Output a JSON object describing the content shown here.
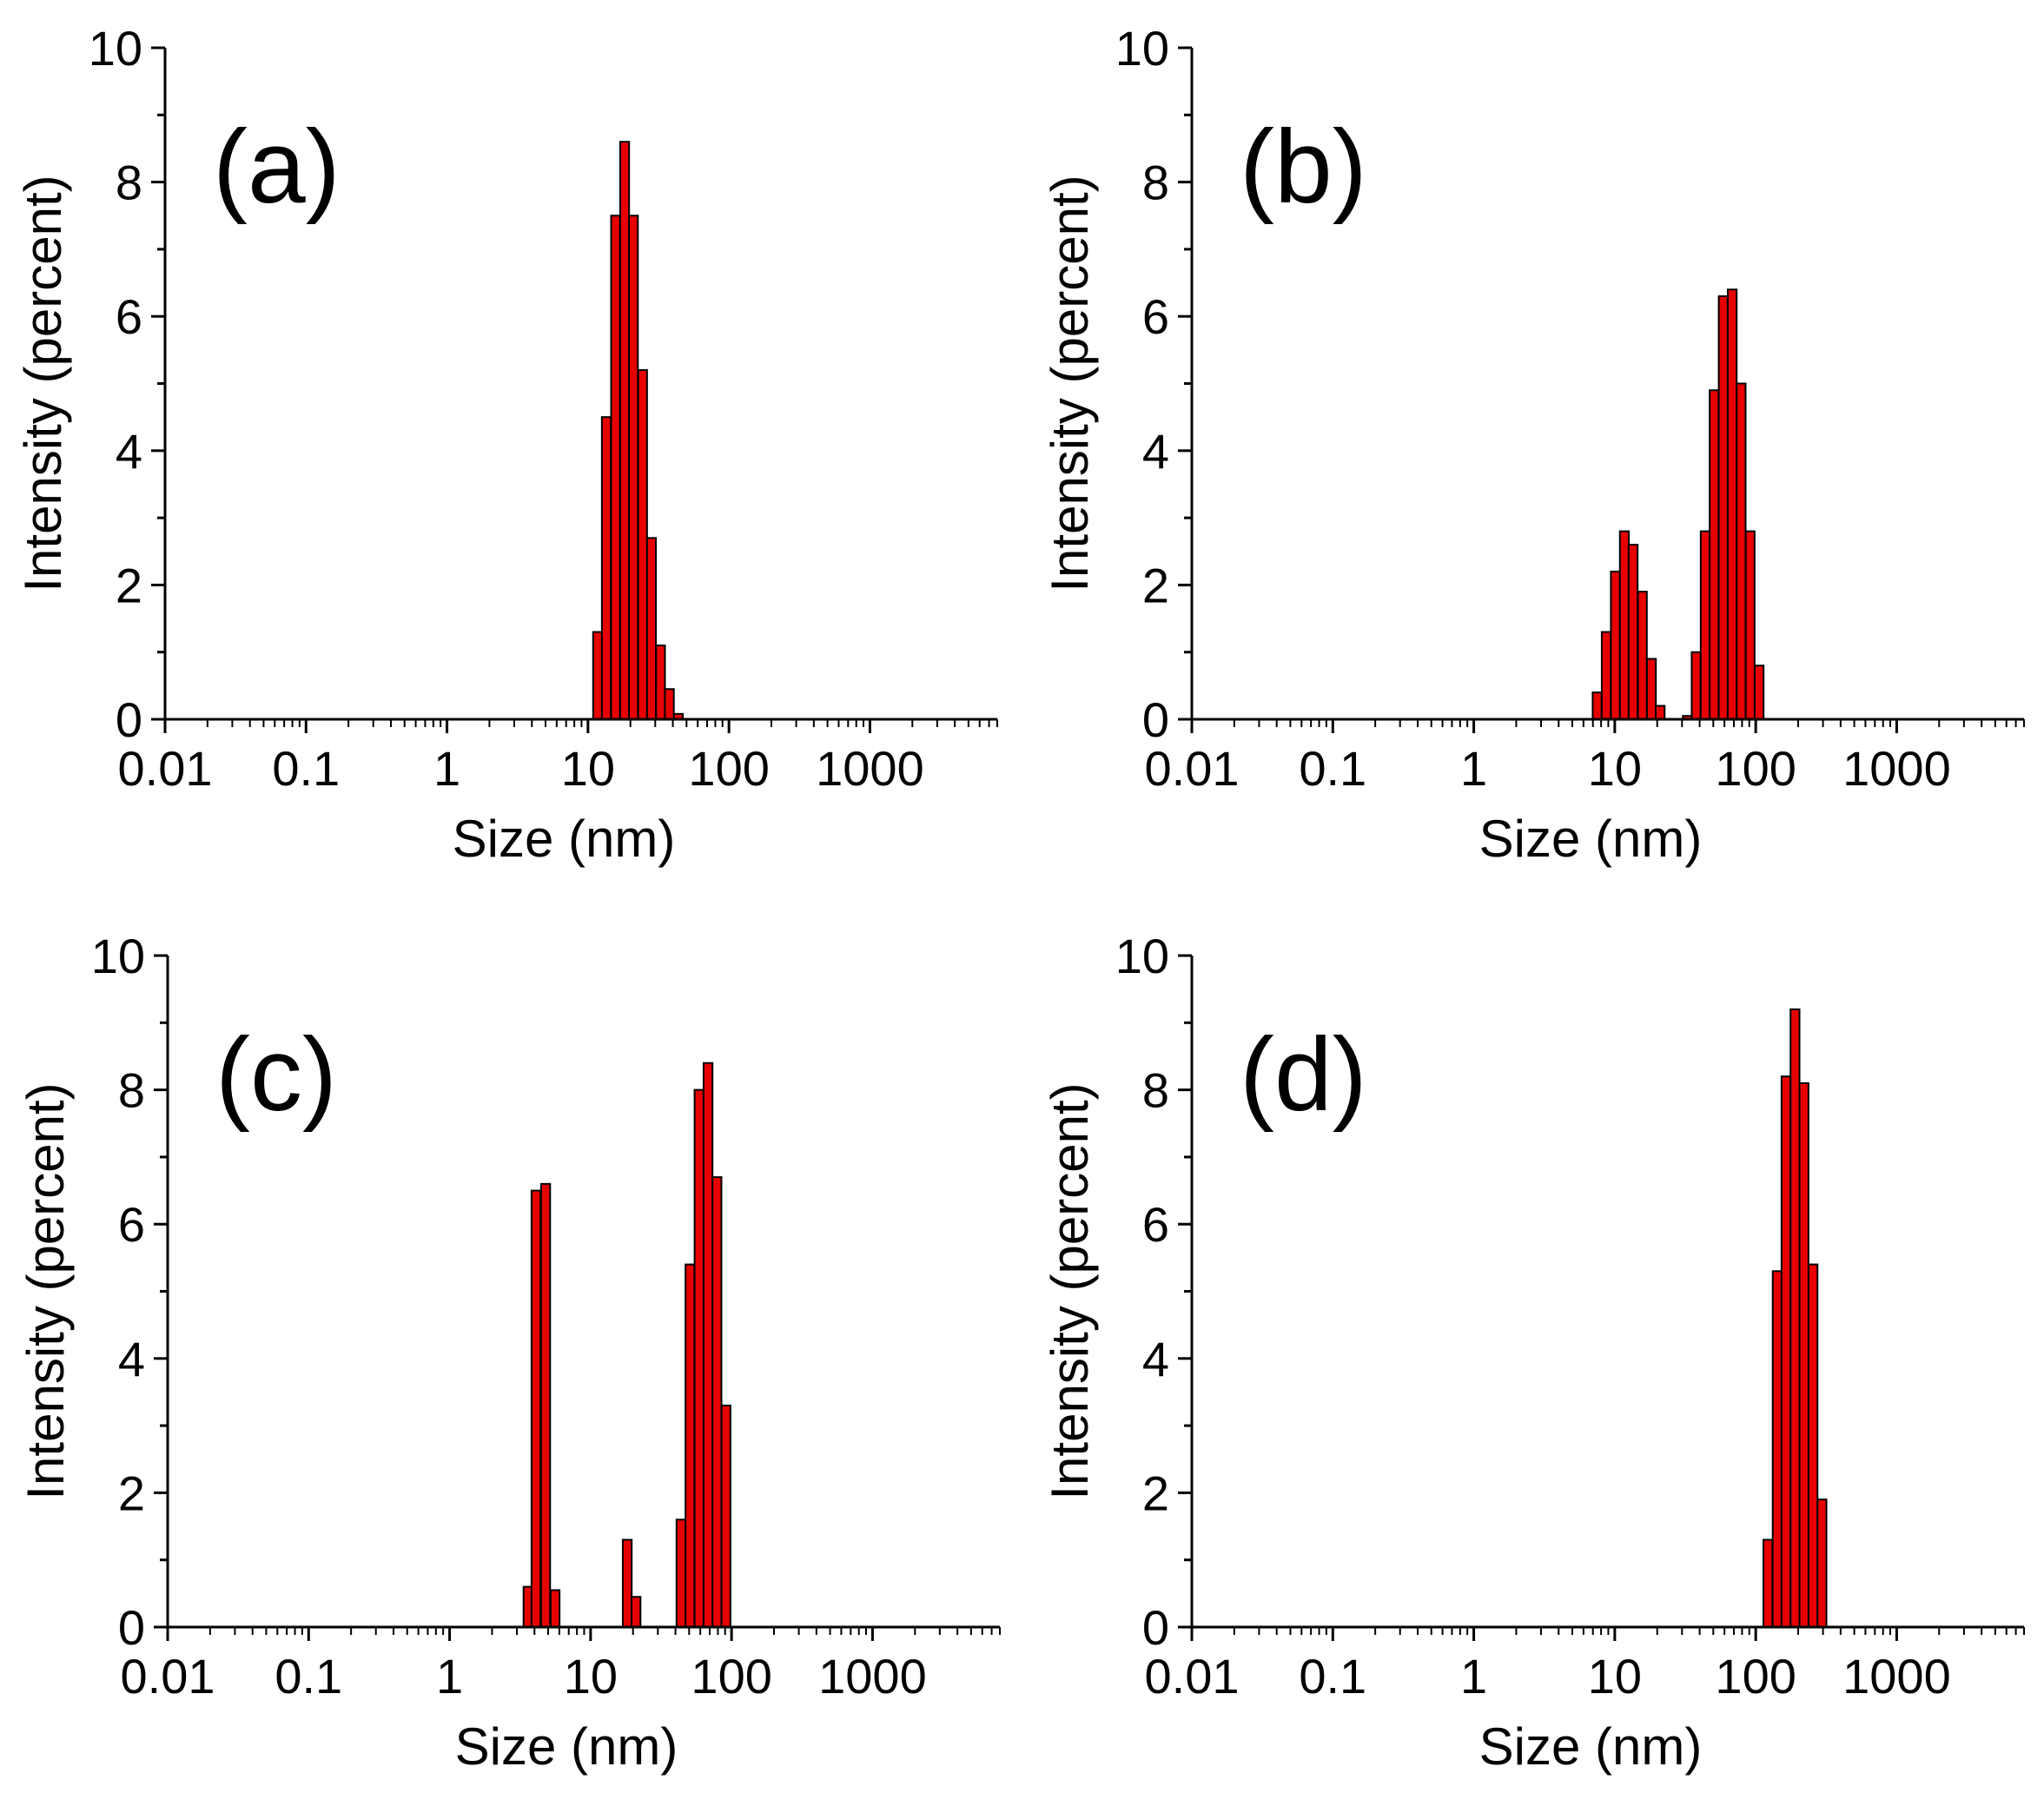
{
  "chart_data": [
    {
      "type": "bar",
      "panel_label": "(a)",
      "xlabel": "Size (nm)",
      "ylabel": "Intensity (percent)",
      "xscale": "log",
      "xlim": [
        0.01,
        8000
      ],
      "ylim": [
        0,
        10
      ],
      "x_ticks": [
        "0.01",
        "0.1",
        "1",
        "10",
        "100",
        "1000"
      ],
      "y_ticks": [
        "0",
        "2",
        "4",
        "6",
        "8",
        "10"
      ],
      "bar_color": "#e60000",
      "bars": [
        {
          "x": 11.7,
          "value": 1.3
        },
        {
          "x": 13.5,
          "value": 4.5
        },
        {
          "x": 15.7,
          "value": 7.5
        },
        {
          "x": 18.2,
          "value": 8.6
        },
        {
          "x": 21.0,
          "value": 7.5
        },
        {
          "x": 24.4,
          "value": 5.2
        },
        {
          "x": 28.2,
          "value": 2.7
        },
        {
          "x": 32.7,
          "value": 1.1
        },
        {
          "x": 37.8,
          "value": 0.45
        },
        {
          "x": 43.8,
          "value": 0.08
        }
      ]
    },
    {
      "type": "bar",
      "panel_label": "(b)",
      "xlabel": "Size (nm)",
      "ylabel": "Intensity (percent)",
      "xscale": "log",
      "xlim": [
        0.01,
        8000
      ],
      "ylim": [
        0,
        10
      ],
      "x_ticks": [
        "0.01",
        "0.1",
        "1",
        "10",
        "100",
        "1000"
      ],
      "y_ticks": [
        "0",
        "2",
        "4",
        "6",
        "8",
        "10"
      ],
      "bar_color": "#e60000",
      "bars": [
        {
          "x": 7.5,
          "value": 0.4
        },
        {
          "x": 8.7,
          "value": 1.3
        },
        {
          "x": 10.1,
          "value": 2.2
        },
        {
          "x": 11.7,
          "value": 2.8
        },
        {
          "x": 13.5,
          "value": 2.6
        },
        {
          "x": 15.7,
          "value": 1.9
        },
        {
          "x": 18.2,
          "value": 0.9
        },
        {
          "x": 21.0,
          "value": 0.2
        },
        {
          "x": 32.7,
          "value": 0.05
        },
        {
          "x": 37.8,
          "value": 1.0
        },
        {
          "x": 43.8,
          "value": 2.8
        },
        {
          "x": 50.7,
          "value": 4.9
        },
        {
          "x": 58.8,
          "value": 6.3
        },
        {
          "x": 68.1,
          "value": 6.4
        },
        {
          "x": 78.8,
          "value": 5.0
        },
        {
          "x": 91.3,
          "value": 2.8
        },
        {
          "x": 105.7,
          "value": 0.8
        }
      ]
    },
    {
      "type": "bar",
      "panel_label": "(c)",
      "xlabel": "Size (nm)",
      "ylabel": "Intensity (percent)",
      "xscale": "log",
      "xlim": [
        0.01,
        8000
      ],
      "ylim": [
        0,
        10
      ],
      "x_ticks": [
        "0.01",
        "0.1",
        "1",
        "10",
        "100",
        "1000"
      ],
      "y_ticks": [
        "0",
        "2",
        "4",
        "6",
        "8",
        "10"
      ],
      "bar_color": "#e60000",
      "bars": [
        {
          "x": 3.6,
          "value": 0.6
        },
        {
          "x": 4.1,
          "value": 6.5
        },
        {
          "x": 4.8,
          "value": 6.6
        },
        {
          "x": 5.6,
          "value": 0.55
        },
        {
          "x": 18.2,
          "value": 1.3
        },
        {
          "x": 21.0,
          "value": 0.45
        },
        {
          "x": 43.8,
          "value": 1.6
        },
        {
          "x": 50.7,
          "value": 5.4
        },
        {
          "x": 58.8,
          "value": 8.0
        },
        {
          "x": 68.1,
          "value": 8.4
        },
        {
          "x": 78.8,
          "value": 6.7
        },
        {
          "x": 91.3,
          "value": 3.3
        }
      ]
    },
    {
      "type": "bar",
      "panel_label": "(d)",
      "xlabel": "Size (nm)",
      "ylabel": "Intensity (percent)",
      "xscale": "log",
      "xlim": [
        0.01,
        8000
      ],
      "ylim": [
        0,
        10
      ],
      "x_ticks": [
        "0.01",
        "0.1",
        "1",
        "10",
        "100",
        "1000"
      ],
      "y_ticks": [
        "0",
        "2",
        "4",
        "6",
        "8",
        "10"
      ],
      "bar_color": "#e60000",
      "bars": [
        {
          "x": 122,
          "value": 1.3
        },
        {
          "x": 142,
          "value": 5.3
        },
        {
          "x": 164,
          "value": 8.2
        },
        {
          "x": 190,
          "value": 9.2
        },
        {
          "x": 220,
          "value": 8.1
        },
        {
          "x": 255,
          "value": 5.4
        },
        {
          "x": 295,
          "value": 1.9
        }
      ]
    }
  ]
}
